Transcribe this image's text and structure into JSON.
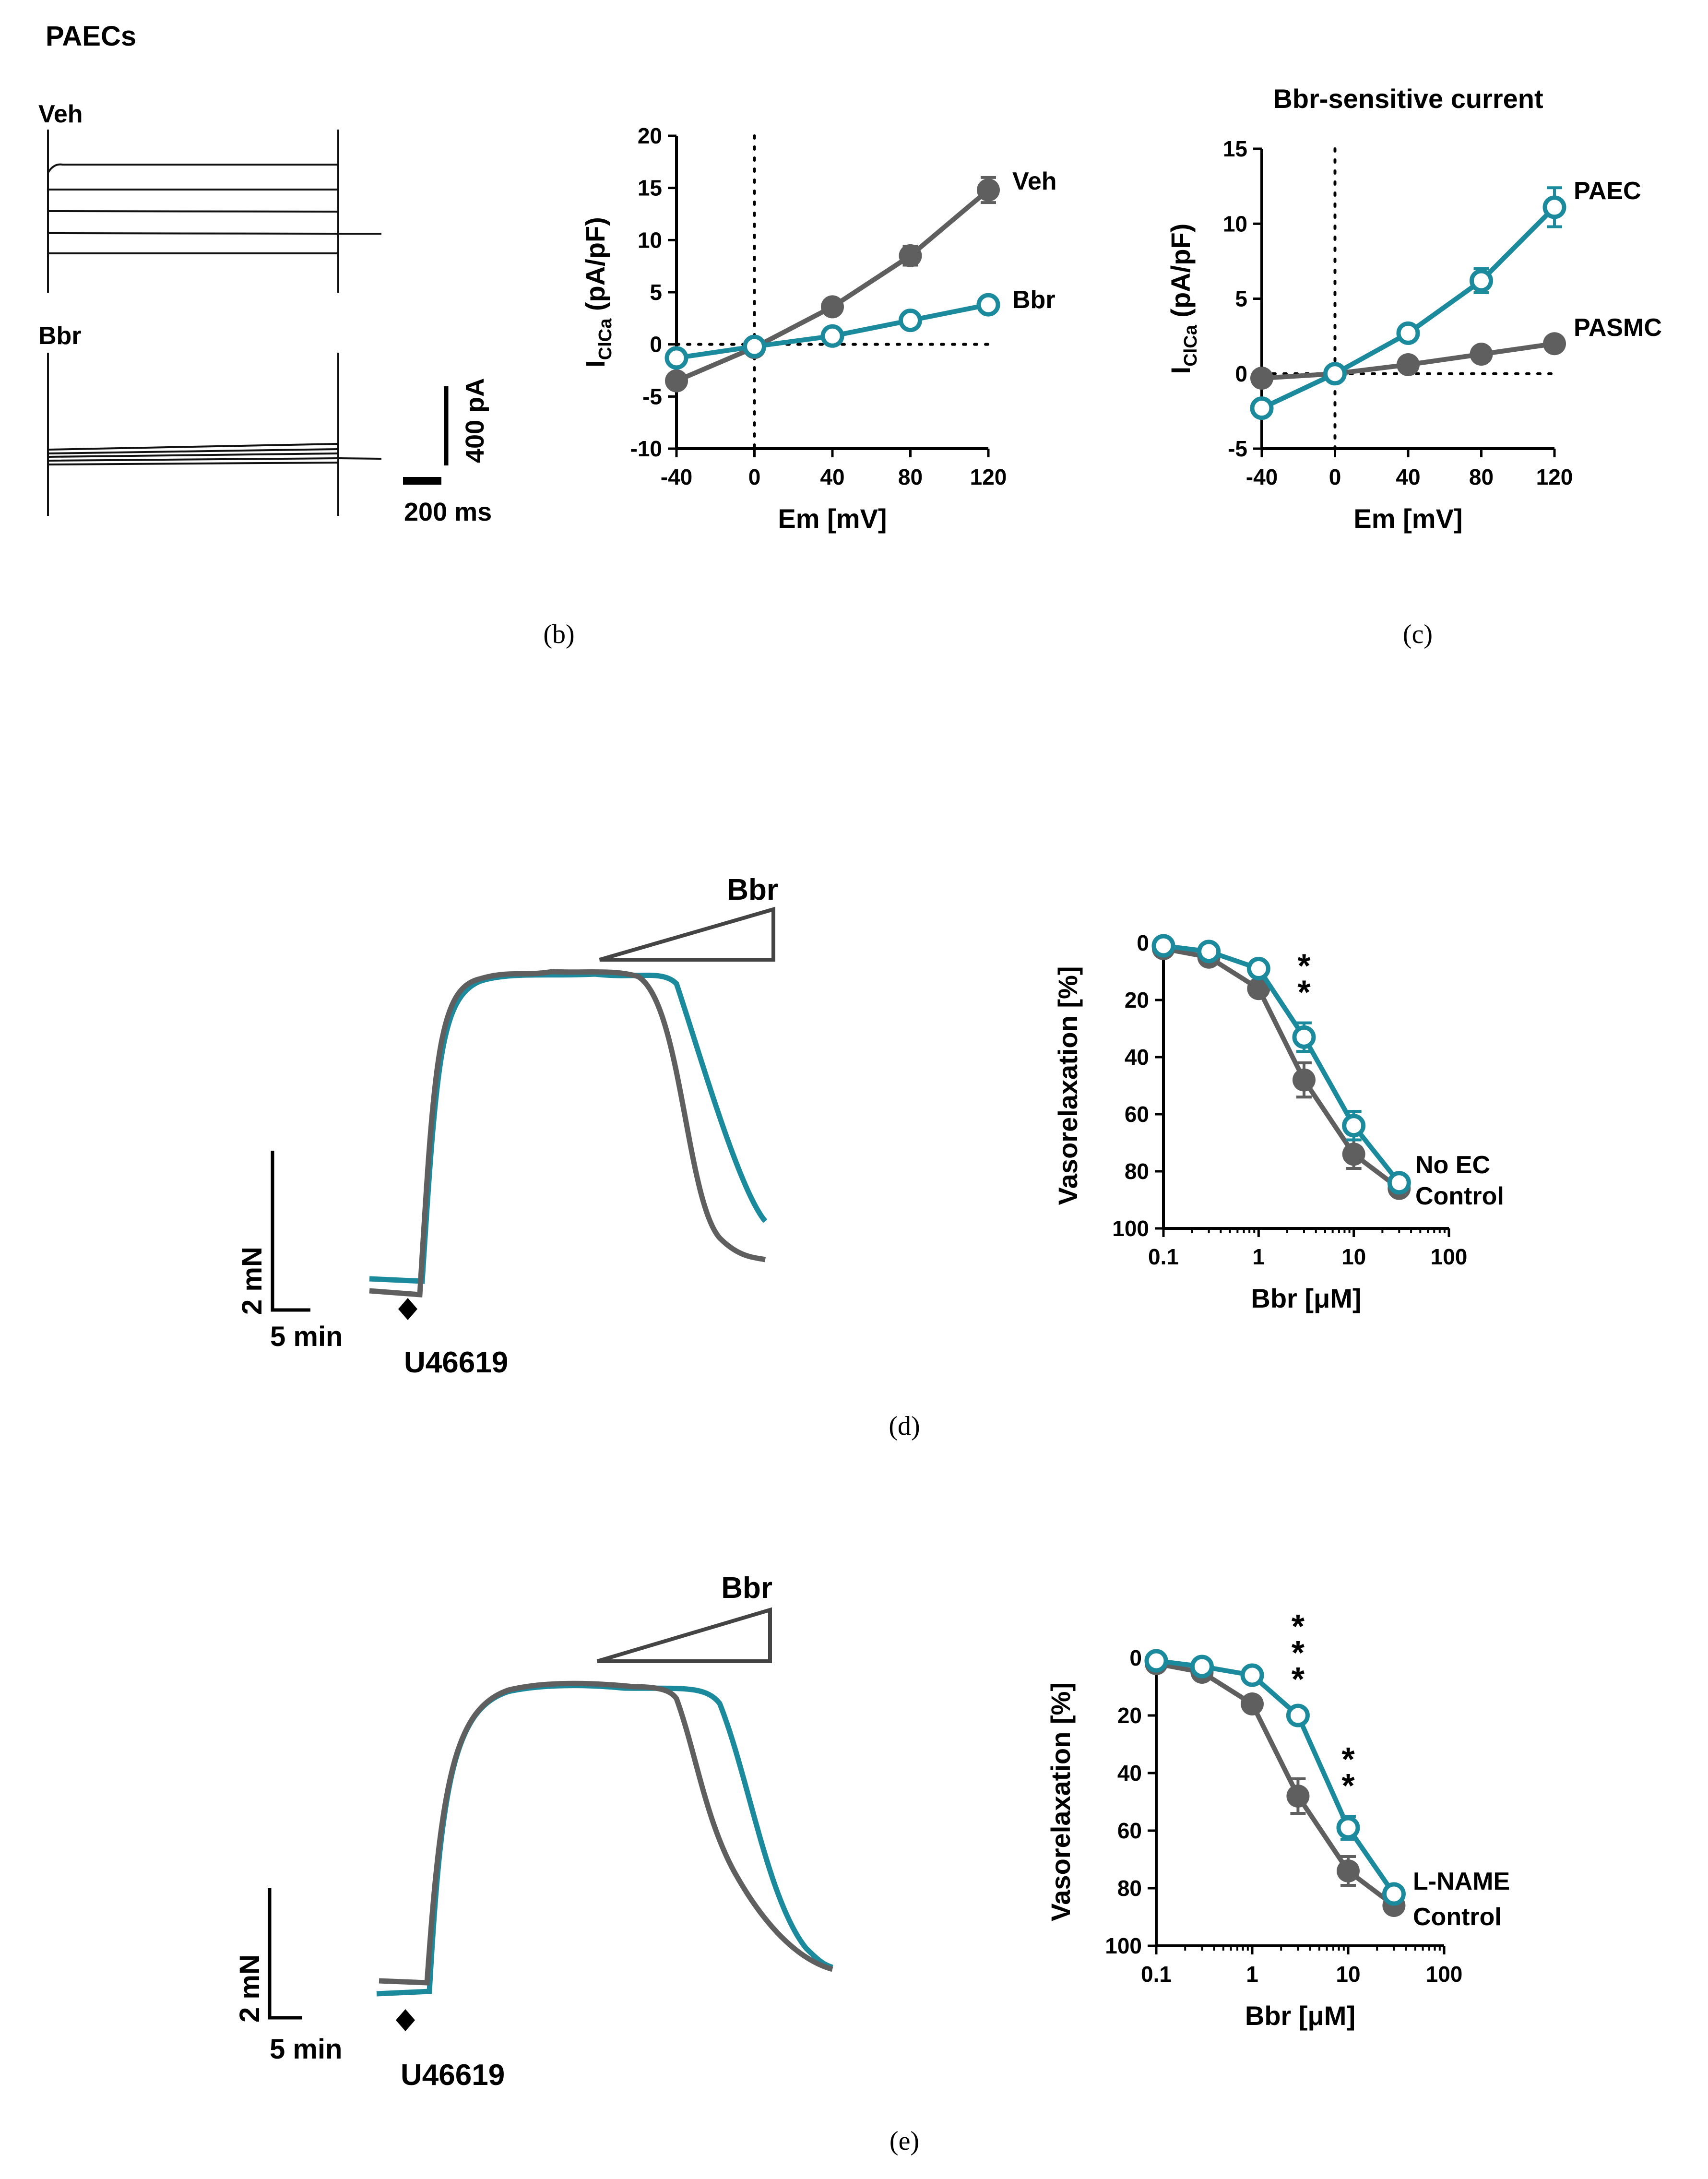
{
  "figure_label": "PAECs",
  "colors": {
    "veh": "#5f5f5f",
    "bbr": "#1a8a9c",
    "axis": "#000000",
    "trace": "#111111"
  },
  "panel_a": {
    "veh_label": "Veh",
    "bbr_label": "Bbr",
    "scale_current": "400 pA",
    "scale_time": "200 ms"
  },
  "captions": {
    "b": "(b)",
    "c": "(c)",
    "d": "(d)",
    "e": "(e)"
  },
  "tension_d": {
    "drug_label": "Bbr",
    "agonist_label": "U46619",
    "scale_force": "2 mN",
    "scale_time": "5 min"
  },
  "tension_e": {
    "drug_label": "Bbr",
    "agonist_label": "U46619",
    "scale_force": "2 mN",
    "scale_time": "5 min"
  },
  "chart_data": [
    {
      "id": "b",
      "type": "line",
      "title": "",
      "xlabel": "Em [mV]",
      "ylabel_main": "I",
      "ylabel_sub": "ClCa",
      "ylabel_unit": " (pA/pF)",
      "xlim": [
        -40,
        120
      ],
      "ylim": [
        -10,
        20
      ],
      "xticks": [
        -40,
        0,
        40,
        80,
        120
      ],
      "yticks": [
        -10,
        -5,
        0,
        5,
        10,
        15,
        20
      ],
      "x": [
        -40,
        0,
        40,
        80,
        120
      ],
      "series": [
        {
          "name": "Veh",
          "color": "#5f5f5f",
          "marker": "filled",
          "values": [
            -3.5,
            -0.3,
            3.6,
            8.5,
            14.8
          ],
          "err": [
            0.4,
            0.3,
            0.4,
            0.9,
            1.2
          ]
        },
        {
          "name": "Bbr",
          "color": "#1a8a9c",
          "marker": "open",
          "values": [
            -1.3,
            -0.2,
            0.8,
            2.3,
            3.8
          ],
          "err": [
            0.3,
            0.2,
            0.3,
            0.4,
            0.7
          ]
        }
      ]
    },
    {
      "id": "c",
      "type": "line",
      "title": "Bbr-sensitive current",
      "xlabel": "Em [mV]",
      "ylabel_main": "I",
      "ylabel_sub": "ClCa",
      "ylabel_unit": " (pA/pF)",
      "xlim": [
        -40,
        120
      ],
      "ylim": [
        -5,
        15
      ],
      "xticks": [
        -40,
        0,
        40,
        80,
        120
      ],
      "yticks": [
        -5,
        0,
        5,
        10,
        15
      ],
      "x": [
        -40,
        0,
        40,
        80,
        120
      ],
      "series": [
        {
          "name": "PAEC",
          "color": "#1a8a9c",
          "marker": "open",
          "values": [
            -2.3,
            0,
            2.7,
            6.2,
            11.1
          ],
          "err": [
            0.2,
            0.1,
            0.3,
            0.8,
            1.3
          ]
        },
        {
          "name": "PASMC",
          "color": "#5f5f5f",
          "marker": "filled",
          "values": [
            -0.3,
            0,
            0.6,
            1.3,
            2.0
          ],
          "err": [
            0.1,
            0.1,
            0.1,
            0.2,
            0.2
          ]
        }
      ]
    },
    {
      "id": "d",
      "type": "line",
      "title": "",
      "xlabel": "Bbr [μM]",
      "ylabel": "Vasorelaxation [%]",
      "xscale": "log",
      "xlim": [
        0.1,
        100
      ],
      "ylim": [
        0,
        100
      ],
      "yinverted": true,
      "xticks": [
        0.1,
        1,
        10,
        100
      ],
      "xticklabels": [
        "0.1",
        "1",
        "10",
        "100"
      ],
      "yticks": [
        0,
        20,
        40,
        60,
        80,
        100
      ],
      "x": [
        0.1,
        0.3,
        1,
        3,
        10,
        30
      ],
      "series": [
        {
          "name": "No EC",
          "color": "#1a8a9c",
          "marker": "open",
          "values": [
            1,
            3,
            9,
            33,
            64,
            84
          ],
          "err": [
            1,
            1,
            1,
            5,
            5,
            2
          ]
        },
        {
          "name": "Control",
          "color": "#5f5f5f",
          "marker": "filled",
          "values": [
            2,
            5,
            16,
            48,
            74,
            86
          ],
          "err": [
            1,
            1,
            2,
            6,
            5,
            2
          ]
        }
      ],
      "annotations": [
        {
          "text": "**",
          "x": 3
        }
      ]
    },
    {
      "id": "e",
      "type": "line",
      "title": "",
      "xlabel": "Bbr [μM]",
      "ylabel": "Vasorelaxation [%]",
      "xscale": "log",
      "xlim": [
        0.1,
        100
      ],
      "ylim": [
        0,
        100
      ],
      "yinverted": true,
      "xticks": [
        0.1,
        1,
        10,
        100
      ],
      "xticklabels": [
        "0.1",
        "1",
        "10",
        "100"
      ],
      "yticks": [
        0,
        20,
        40,
        60,
        80,
        100
      ],
      "x": [
        0.1,
        0.3,
        1,
        3,
        10,
        30
      ],
      "series": [
        {
          "name": "L-NAME",
          "color": "#1a8a9c",
          "marker": "open",
          "values": [
            1,
            3,
            6,
            20,
            59,
            82
          ],
          "err": [
            1,
            1,
            1,
            2,
            4,
            2
          ]
        },
        {
          "name": "Control",
          "color": "#5f5f5f",
          "marker": "filled",
          "values": [
            2,
            5,
            16,
            48,
            74,
            86
          ],
          "err": [
            1,
            1,
            2,
            6,
            5,
            2
          ]
        }
      ],
      "annotations": [
        {
          "text": "***",
          "x": 3
        },
        {
          "text": "**",
          "x": 10
        }
      ]
    }
  ]
}
